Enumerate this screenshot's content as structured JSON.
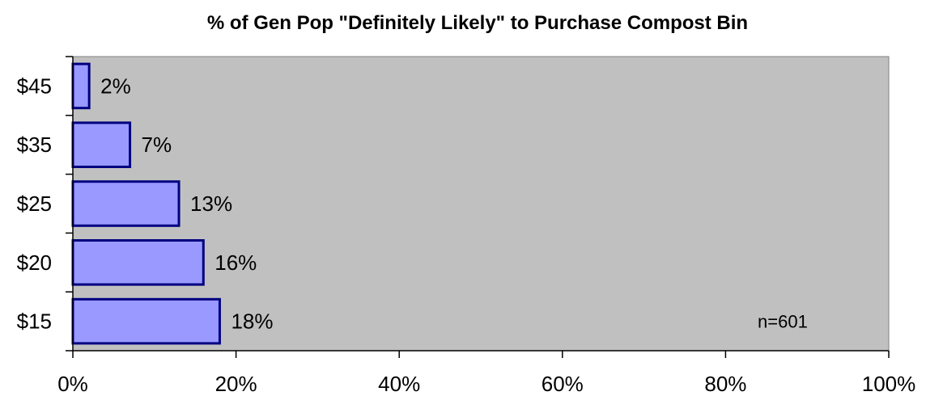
{
  "chart_data": {
    "type": "bar",
    "orientation": "horizontal",
    "title": "% of Gen Pop \"Definitely Likely\" to Purchase Compost Bin",
    "xlabel": "",
    "ylabel": "",
    "categories": [
      "$45",
      "$35",
      "$25",
      "$20",
      "$15"
    ],
    "values": [
      2,
      7,
      13,
      16,
      18
    ],
    "value_labels": [
      "2%",
      "7%",
      "13%",
      "16%",
      "18%"
    ],
    "xlim": [
      0,
      100
    ],
    "x_ticks": [
      0,
      20,
      40,
      60,
      80,
      100
    ],
    "x_tick_labels": [
      "0%",
      "20%",
      "40%",
      "60%",
      "80%",
      "100%"
    ],
    "grid": false,
    "legend": "none",
    "annotation": "n=601",
    "colors": {
      "plot_background": "#c0c0c0",
      "bar_fill": "#9999ff",
      "bar_stroke": "#000080",
      "axis": "#000000"
    }
  }
}
